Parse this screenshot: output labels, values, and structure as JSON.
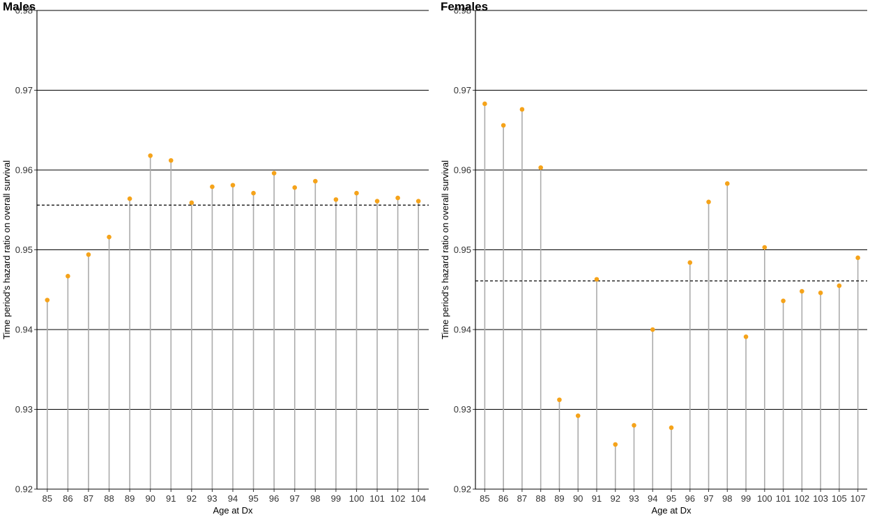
{
  "chart_data": [
    {
      "type": "lollipop",
      "title": "Males",
      "xlabel": "Age at Dx",
      "ylabel": "Time period's hazard ratio on overall survival",
      "ylim": [
        0.92,
        0.98
      ],
      "yticks": [
        "0.92",
        "0.93",
        "0.94",
        "0.95",
        "0.96",
        "0.97",
        "0.98"
      ],
      "grid": "horizontal-major",
      "reference_line": 0.9556,
      "categories": [
        "85",
        "86",
        "87",
        "88",
        "89",
        "90",
        "91",
        "92",
        "93",
        "94",
        "95",
        "96",
        "97",
        "98",
        "99",
        "100",
        "101",
        "102",
        "104"
      ],
      "values": [
        0.9437,
        0.9467,
        0.9494,
        0.9516,
        0.9564,
        0.9618,
        0.9612,
        0.9559,
        0.9579,
        0.9581,
        0.9571,
        0.9596,
        0.9578,
        0.9586,
        0.9563,
        0.9571,
        0.9561,
        0.9565,
        0.9561
      ]
    },
    {
      "type": "lollipop",
      "title": "Females",
      "xlabel": "Age at Dx",
      "ylabel": "Time period's hazard ratio on overall survival",
      "ylim": [
        0.92,
        0.98
      ],
      "yticks": [
        "0.92",
        "0.93",
        "0.94",
        "0.95",
        "0.96",
        "0.97",
        "0.98"
      ],
      "grid": "horizontal-major",
      "reference_line": 0.9461,
      "categories": [
        "85",
        "86",
        "87",
        "88",
        "89",
        "90",
        "91",
        "92",
        "93",
        "94",
        "95",
        "96",
        "97",
        "98",
        "99",
        "100",
        "101",
        "102",
        "103",
        "105",
        "107"
      ],
      "values": [
        0.9683,
        0.9656,
        0.9676,
        0.9603,
        0.9312,
        0.9292,
        0.9463,
        0.9256,
        0.928,
        0.94,
        0.9277,
        0.9484,
        0.956,
        0.9583,
        0.9391,
        0.9503,
        0.9436,
        0.9448,
        0.9446,
        0.9455,
        0.949
      ]
    }
  ],
  "colors": {
    "point": "#f5a31a",
    "stem": "#ababab",
    "grid": "#000000",
    "reference": "#000000",
    "axis": "#000000"
  }
}
